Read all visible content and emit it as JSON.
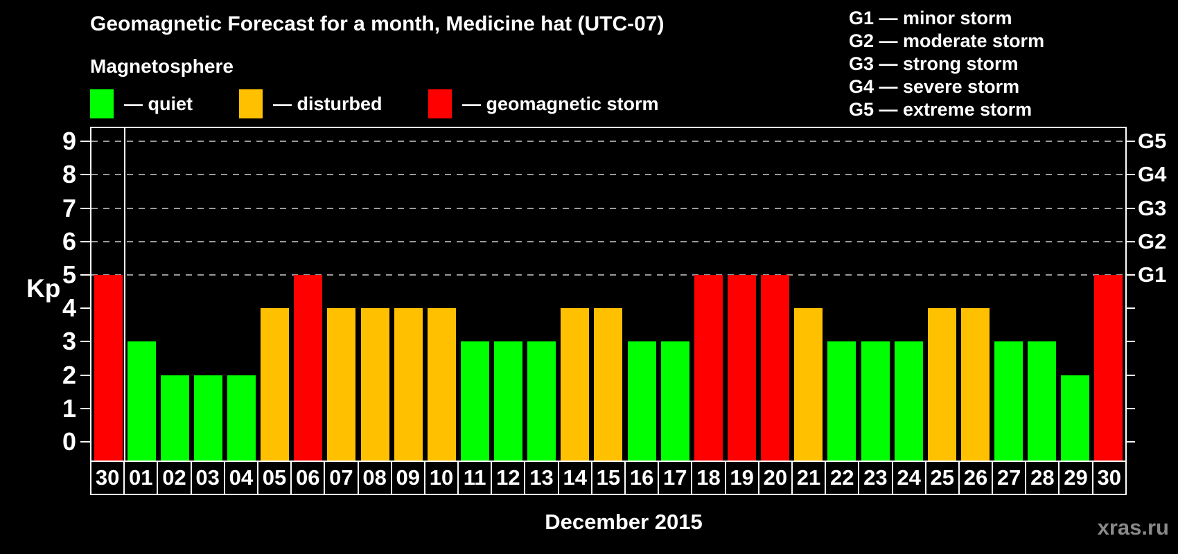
{
  "title": "Geomagnetic Forecast for a month, Medicine hat (UTC-07)",
  "subtitle": "Magnetosphere",
  "legend": {
    "items": [
      {
        "status": "quiet",
        "label": "— quiet"
      },
      {
        "status": "disturbed",
        "label": "— disturbed"
      },
      {
        "status": "storm",
        "label": "— geomagnetic storm"
      }
    ]
  },
  "storm_scale_legend": [
    "G1 — minor storm",
    "G2 — moderate storm",
    "G3 — strong storm",
    "G4 — severe storm",
    "G5 — extreme storm"
  ],
  "watermark": "xras.ru",
  "colors": {
    "quiet": "#00ff00",
    "disturbed": "#ffc000",
    "storm": "#ff0000",
    "background": "#000000",
    "text": "#ffffff",
    "grid": "#9a9a9a",
    "frame": "#ffffff",
    "watermark": "#8a8a8a"
  },
  "chart_data": {
    "type": "bar",
    "title": "Geomagnetic Forecast for a month, Medicine hat (UTC-07)",
    "xlabel": "December 2015",
    "ylabel": "Kp",
    "ylim": [
      -0.6,
      9.4
    ],
    "yticks": [
      0,
      1,
      2,
      3,
      4,
      5,
      6,
      7,
      8,
      9
    ],
    "grid_values": [
      5,
      6,
      7,
      8,
      9
    ],
    "grid_style": "dashed horizontal lines at storm levels only",
    "legend_position": "top-left",
    "right_axis": [
      {
        "value": 5,
        "label": "G1"
      },
      {
        "value": 6,
        "label": "G2"
      },
      {
        "value": 7,
        "label": "G3"
      },
      {
        "value": 8,
        "label": "G4"
      },
      {
        "value": 9,
        "label": "G5"
      }
    ],
    "month_separator_after_index": 0,
    "bars": [
      {
        "day": "30",
        "value": 5,
        "status": "storm"
      },
      {
        "day": "01",
        "value": 3,
        "status": "quiet"
      },
      {
        "day": "02",
        "value": 2,
        "status": "quiet"
      },
      {
        "day": "03",
        "value": 2,
        "status": "quiet"
      },
      {
        "day": "04",
        "value": 2,
        "status": "quiet"
      },
      {
        "day": "05",
        "value": 4,
        "status": "disturbed"
      },
      {
        "day": "06",
        "value": 5,
        "status": "storm"
      },
      {
        "day": "07",
        "value": 4,
        "status": "disturbed"
      },
      {
        "day": "08",
        "value": 4,
        "status": "disturbed"
      },
      {
        "day": "09",
        "value": 4,
        "status": "disturbed"
      },
      {
        "day": "10",
        "value": 4,
        "status": "disturbed"
      },
      {
        "day": "11",
        "value": 3,
        "status": "quiet"
      },
      {
        "day": "12",
        "value": 3,
        "status": "quiet"
      },
      {
        "day": "13",
        "value": 3,
        "status": "quiet"
      },
      {
        "day": "14",
        "value": 4,
        "status": "disturbed"
      },
      {
        "day": "15",
        "value": 4,
        "status": "disturbed"
      },
      {
        "day": "16",
        "value": 3,
        "status": "quiet"
      },
      {
        "day": "17",
        "value": 3,
        "status": "quiet"
      },
      {
        "day": "18",
        "value": 5,
        "status": "storm"
      },
      {
        "day": "19",
        "value": 5,
        "status": "storm"
      },
      {
        "day": "20",
        "value": 5,
        "status": "storm"
      },
      {
        "day": "21",
        "value": 4,
        "status": "disturbed"
      },
      {
        "day": "22",
        "value": 3,
        "status": "quiet"
      },
      {
        "day": "23",
        "value": 3,
        "status": "quiet"
      },
      {
        "day": "24",
        "value": 3,
        "status": "quiet"
      },
      {
        "day": "25",
        "value": 4,
        "status": "disturbed"
      },
      {
        "day": "26",
        "value": 4,
        "status": "disturbed"
      },
      {
        "day": "27",
        "value": 3,
        "status": "quiet"
      },
      {
        "day": "28",
        "value": 3,
        "status": "quiet"
      },
      {
        "day": "29",
        "value": 2,
        "status": "quiet"
      },
      {
        "day": "30",
        "value": 5,
        "status": "storm"
      }
    ]
  }
}
